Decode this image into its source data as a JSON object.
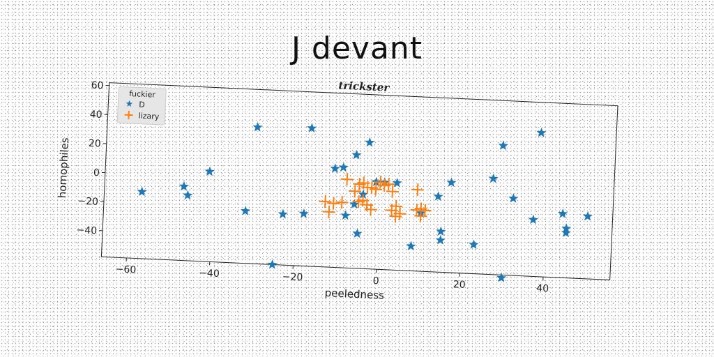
{
  "title": "J devant",
  "chart_data": {
    "type": "scatter",
    "subtitle": "trickster",
    "xlabel": "peeledness",
    "ylabel": "homophiles",
    "xlim": [
      -66,
      56
    ],
    "ylim": [
      -58,
      62
    ],
    "xticks": [
      -60,
      -40,
      -20,
      0,
      20,
      40
    ],
    "yticks": [
      -40,
      -20,
      0,
      20,
      40,
      60
    ],
    "grid": false,
    "legend": {
      "title": "fuckier",
      "placement": "top-left",
      "entries": [
        "D",
        "lizary"
      ]
    },
    "series": [
      {
        "name": "D",
        "marker": "star",
        "color": "#1f77b4",
        "points": [
          [
            -57,
            -12
          ],
          [
            -47,
            -7
          ],
          [
            -46,
            -13
          ],
          [
            -41,
            4
          ],
          [
            -32,
            -22
          ],
          [
            -30,
            36
          ],
          [
            -23,
            -23
          ],
          [
            -25,
            -58
          ],
          [
            -18,
            -22
          ],
          [
            -17,
            37
          ],
          [
            -11,
            10
          ],
          [
            -9,
            11
          ],
          [
            -8,
            -22
          ],
          [
            -6,
            20
          ],
          [
            -3,
            29
          ],
          [
            -1,
            2
          ],
          [
            1,
            2
          ],
          [
            -5,
            -34
          ],
          [
            -6,
            -14
          ],
          [
            -4,
            -7
          ],
          [
            4,
            2
          ],
          [
            8,
            -41
          ],
          [
            10,
            -18
          ],
          [
            14,
            -6
          ],
          [
            15,
            -30
          ],
          [
            15,
            -36
          ],
          [
            17,
            4
          ],
          [
            23,
            -38
          ],
          [
            27,
            8
          ],
          [
            29,
            31
          ],
          [
            30,
            -60
          ],
          [
            32,
            -5
          ],
          [
            37,
            -19
          ],
          [
            38,
            41
          ],
          [
            44,
            -14
          ],
          [
            45,
            -24
          ],
          [
            45,
            -27
          ],
          [
            50,
            -15
          ]
        ]
      },
      {
        "name": "lizary",
        "marker": "plus",
        "color": "#ff7f0e",
        "points": [
          [
            -13,
            -13
          ],
          [
            -12,
            -20
          ],
          [
            -11,
            -14
          ],
          [
            -9,
            -13
          ],
          [
            -8,
            3
          ],
          [
            -5,
            0
          ],
          [
            -4,
            1
          ],
          [
            -3,
            -2
          ],
          [
            -2,
            -2
          ],
          [
            -1,
            -3
          ],
          [
            -5,
            -12
          ],
          [
            -4,
            -11
          ],
          [
            -3,
            -14
          ],
          [
            -2,
            -17
          ],
          [
            0,
            2
          ],
          [
            2,
            1
          ],
          [
            3,
            -4
          ],
          [
            3,
            -17
          ],
          [
            4,
            -21
          ],
          [
            4,
            -14
          ],
          [
            5,
            -19
          ],
          [
            9,
            -2
          ],
          [
            9,
            -16
          ],
          [
            10,
            -20
          ],
          [
            10,
            -15
          ],
          [
            11,
            -16
          ],
          [
            1,
            0
          ],
          [
            -6,
            -5
          ]
        ]
      }
    ]
  }
}
